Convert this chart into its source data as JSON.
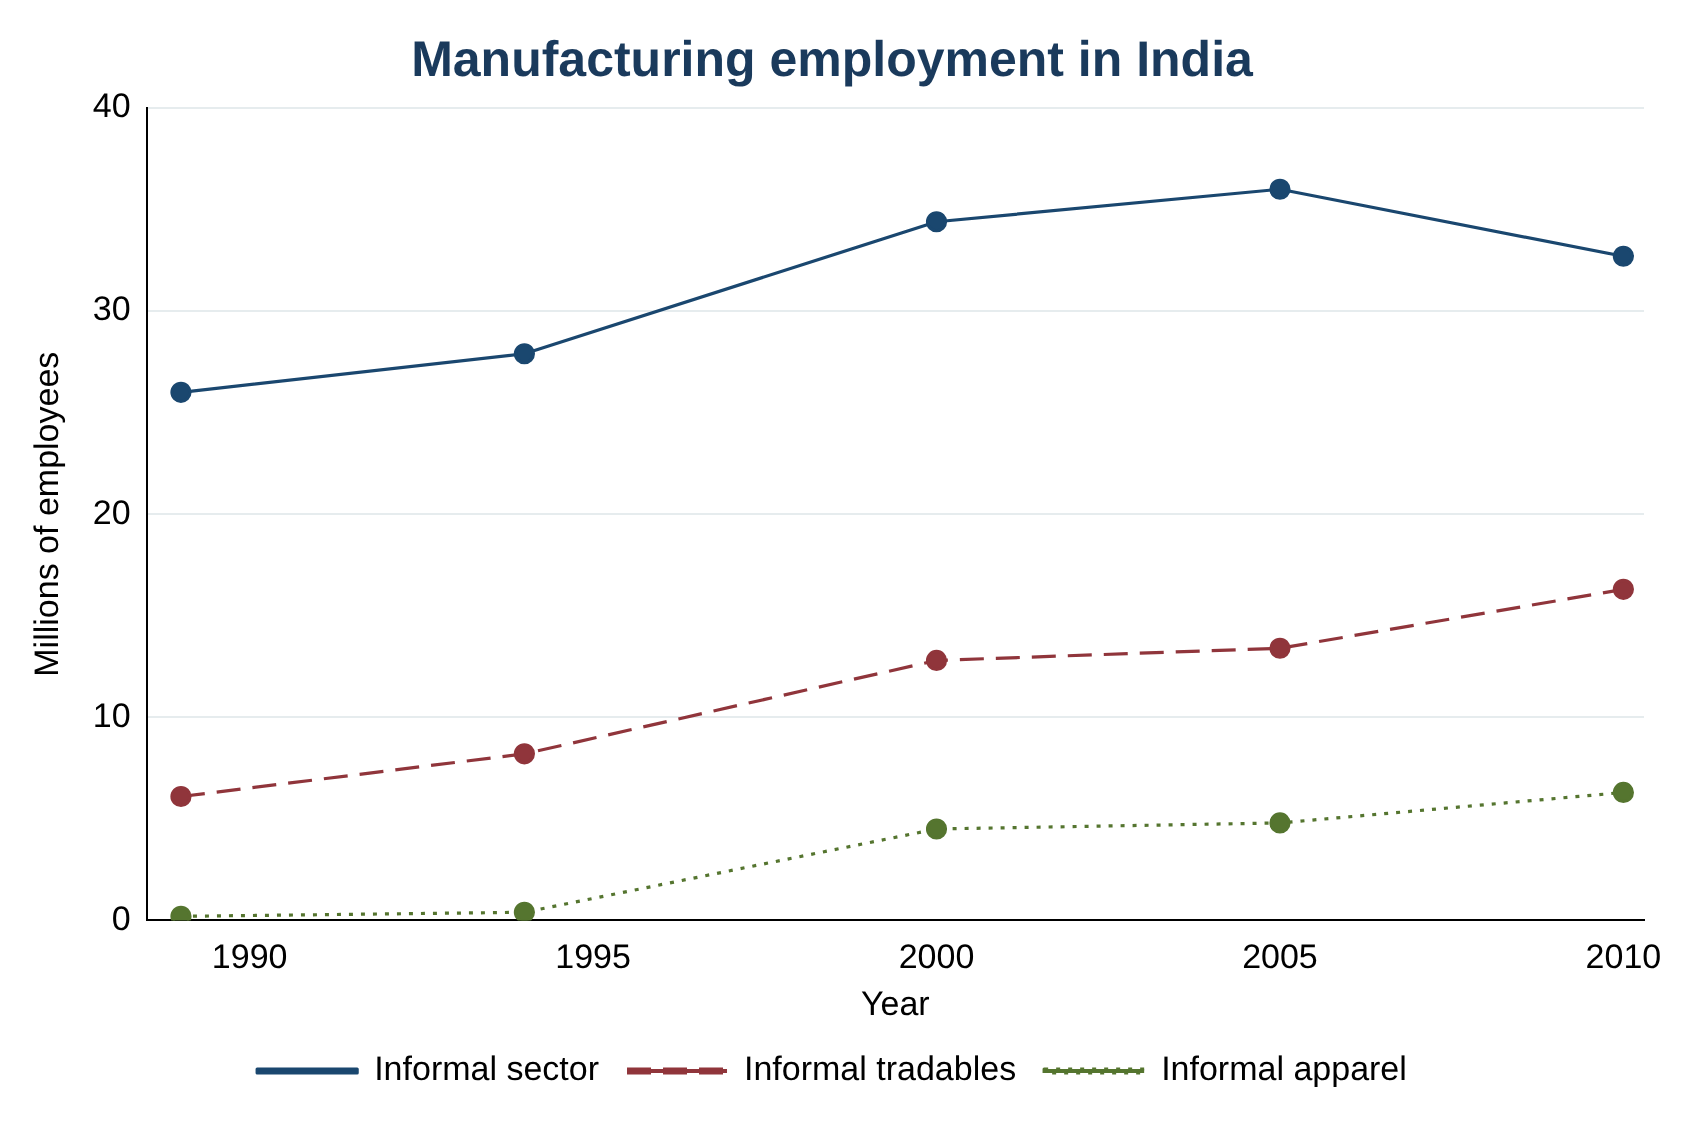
{
  "chart_data": {
    "type": "line",
    "title": "Manufacturing employment in India",
    "xlabel": "Year",
    "ylabel": "Millions of employees",
    "x": [
      1989,
      1994,
      2000,
      2005,
      2010
    ],
    "series": [
      {
        "name": "Informal sector",
        "color": "#1a476f",
        "values": [
          26.0,
          27.9,
          34.4,
          36.0,
          32.7
        ],
        "line_style": "solid"
      },
      {
        "name": "Informal tradables",
        "color": "#90353b",
        "values": [
          6.1,
          8.2,
          12.8,
          13.4,
          16.3
        ],
        "line_style": "dashed"
      },
      {
        "name": "Informal apparel",
        "color": "#55752f",
        "values": [
          0.2,
          0.4,
          4.5,
          4.8,
          6.3
        ],
        "line_style": "dotted"
      }
    ],
    "xlim": [
      1988.5,
      2010.3
    ],
    "xticks": [
      1990,
      1995,
      2000,
      2005,
      2010
    ],
    "ylim": [
      0,
      40
    ],
    "yticks": [
      0,
      10,
      20,
      30,
      40
    ],
    "grid": "y",
    "legend": "bottom",
    "marker": "circle"
  }
}
